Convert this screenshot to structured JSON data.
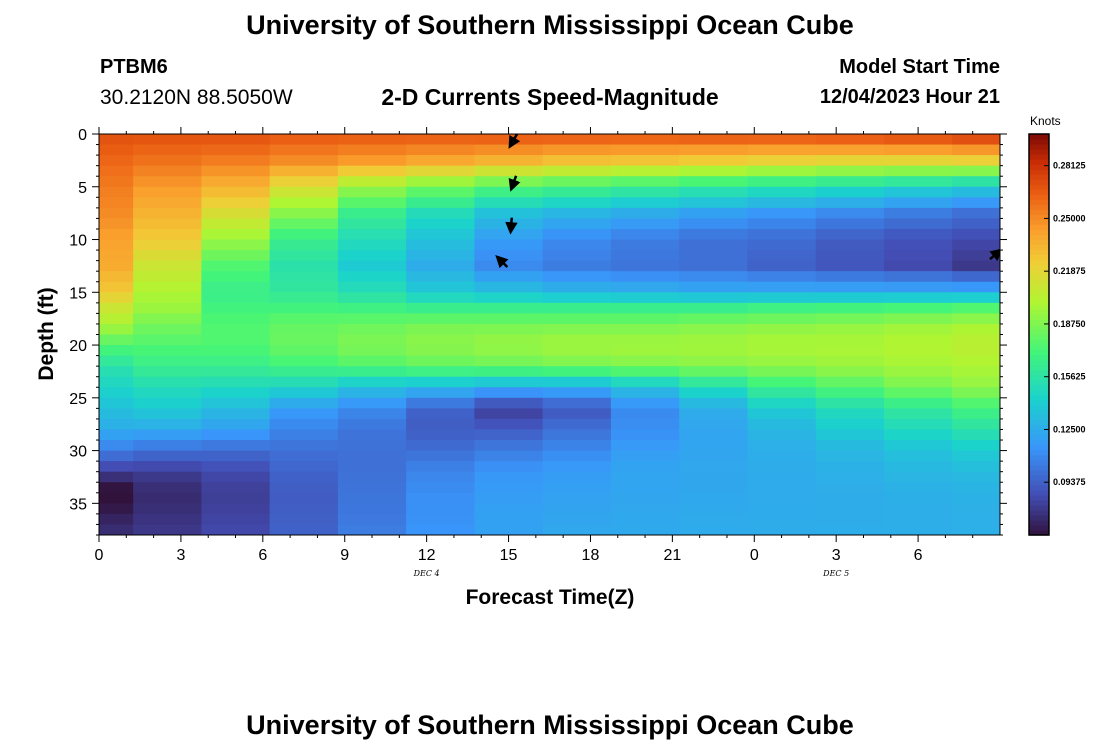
{
  "header": {
    "title": "University of Southern Mississippi Ocean Cube",
    "station": "PTBM6",
    "coords": "30.2120N  88.5050W",
    "chart_title": "2-D Currents Speed-Magnitude",
    "model_label": "Model Start Time",
    "model_time": "12/04/2023 Hour 21"
  },
  "footer": {
    "title": "University of Southern Mississippi Ocean Cube"
  },
  "colorbar": {
    "unit": "Knots",
    "ticks": [
      0.28125,
      0.25,
      0.21875,
      0.1875,
      0.15625,
      0.125,
      0.09375
    ],
    "tick_labels": [
      "0.28125",
      "0.25000",
      "0.21875",
      "0.18750",
      "0.15625",
      "0.12500",
      "0.09375"
    ],
    "range": [
      0.0625,
      0.3
    ]
  },
  "chart_data": {
    "type": "heatmap",
    "title": "2-D Currents Speed-Magnitude",
    "xlabel": "Forecast Time(Z)",
    "ylabel": "Depth (ft)",
    "x_tick_labels": [
      "0",
      "3",
      "6",
      "9",
      "12",
      "15",
      "18",
      "21",
      "0",
      "3",
      "6"
    ],
    "x_range": [
      0,
      33
    ],
    "y_tick_labels": [
      "0",
      "5",
      "10",
      "15",
      "20",
      "25",
      "30",
      "35"
    ],
    "y_range": [
      0,
      38
    ],
    "date_labels": [
      {
        "text": "DEC 4",
        "at_hour": 12
      },
      {
        "text": "DEC 5",
        "at_hour": 27
      }
    ],
    "column_hours": [
      0,
      2.5,
      5,
      7.5,
      10,
      12.5,
      15,
      17.5,
      20,
      22.5,
      25,
      27.5,
      30,
      32.5
    ],
    "profile_depths": [
      0,
      2.5,
      5,
      7.5,
      10,
      12.5,
      15,
      16.5,
      18,
      20,
      22,
      24,
      26,
      28,
      30,
      32,
      34,
      36,
      38
    ],
    "profiles": [
      [
        0.27,
        0.262,
        0.255,
        0.25,
        0.242,
        0.238,
        0.225,
        0.21,
        0.2,
        0.175,
        0.155,
        0.145,
        0.135,
        0.125,
        0.105,
        0.08,
        0.058,
        0.068,
        0.075
      ],
      [
        0.27,
        0.258,
        0.245,
        0.235,
        0.225,
        0.21,
        0.2,
        0.195,
        0.185,
        0.175,
        0.165,
        0.15,
        0.14,
        0.125,
        0.1,
        0.08,
        0.072,
        0.075,
        0.078
      ],
      [
        0.27,
        0.255,
        0.235,
        0.215,
        0.195,
        0.175,
        0.165,
        0.17,
        0.175,
        0.175,
        0.165,
        0.148,
        0.132,
        0.12,
        0.098,
        0.085,
        0.08,
        0.082,
        0.085
      ],
      [
        0.268,
        0.25,
        0.215,
        0.19,
        0.165,
        0.155,
        0.16,
        0.17,
        0.18,
        0.182,
        0.17,
        0.145,
        0.118,
        0.108,
        0.1,
        0.095,
        0.092,
        0.093,
        0.095
      ],
      [
        0.268,
        0.245,
        0.195,
        0.165,
        0.15,
        0.14,
        0.152,
        0.168,
        0.182,
        0.188,
        0.175,
        0.135,
        0.11,
        0.102,
        0.1,
        0.1,
        0.102,
        0.103,
        0.105
      ],
      [
        0.268,
        0.24,
        0.185,
        0.15,
        0.135,
        0.125,
        0.14,
        0.165,
        0.185,
        0.192,
        0.18,
        0.13,
        0.095,
        0.092,
        0.1,
        0.108,
        0.112,
        0.113,
        0.115
      ],
      [
        0.27,
        0.235,
        0.175,
        0.135,
        0.118,
        0.11,
        0.135,
        0.165,
        0.185,
        0.195,
        0.182,
        0.125,
        0.08,
        0.092,
        0.105,
        0.115,
        0.118,
        0.12,
        0.12
      ],
      [
        0.27,
        0.23,
        0.17,
        0.13,
        0.11,
        0.105,
        0.13,
        0.165,
        0.185,
        0.198,
        0.185,
        0.125,
        0.09,
        0.1,
        0.11,
        0.118,
        0.12,
        0.122,
        0.123
      ],
      [
        0.27,
        0.228,
        0.165,
        0.125,
        0.105,
        0.102,
        0.128,
        0.165,
        0.185,
        0.198,
        0.188,
        0.135,
        0.11,
        0.112,
        0.118,
        0.122,
        0.122,
        0.123,
        0.124
      ],
      [
        0.272,
        0.225,
        0.16,
        0.12,
        0.1,
        0.1,
        0.125,
        0.165,
        0.188,
        0.198,
        0.19,
        0.15,
        0.125,
        0.122,
        0.122,
        0.123,
        0.123,
        0.124,
        0.125
      ],
      [
        0.272,
        0.222,
        0.155,
        0.115,
        0.098,
        0.095,
        0.125,
        0.168,
        0.19,
        0.2,
        0.192,
        0.165,
        0.14,
        0.13,
        0.126,
        0.125,
        0.124,
        0.125,
        0.125
      ],
      [
        0.275,
        0.22,
        0.15,
        0.11,
        0.092,
        0.09,
        0.125,
        0.17,
        0.192,
        0.2,
        0.195,
        0.175,
        0.15,
        0.14,
        0.13,
        0.127,
        0.125,
        0.125,
        0.126
      ],
      [
        0.278,
        0.22,
        0.145,
        0.105,
        0.088,
        0.085,
        0.125,
        0.172,
        0.195,
        0.202,
        0.198,
        0.185,
        0.16,
        0.148,
        0.135,
        0.13,
        0.127,
        0.126,
        0.126
      ],
      [
        0.282,
        0.222,
        0.14,
        0.1,
        0.085,
        0.078,
        0.125,
        0.175,
        0.198,
        0.205,
        0.2,
        0.192,
        0.17,
        0.155,
        0.14,
        0.132,
        0.128,
        0.127,
        0.127
      ]
    ],
    "arrows": [
      {
        "hour": 15.2,
        "depth": 0.5,
        "dir_deg": 120
      },
      {
        "hour": 15.2,
        "depth": 4.5,
        "dir_deg": 110
      },
      {
        "hour": 15.1,
        "depth": 8.5,
        "dir_deg": 95
      },
      {
        "hour": 14.8,
        "depth": 12.2,
        "dir_deg": 225
      },
      {
        "hour": 32.8,
        "depth": 11.5,
        "dir_deg": 320
      }
    ]
  }
}
